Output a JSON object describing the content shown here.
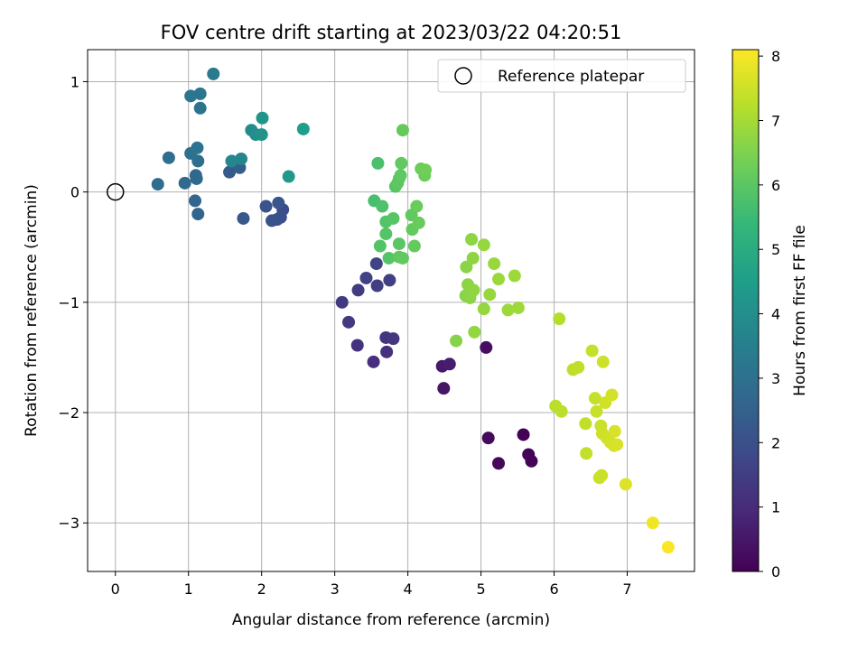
{
  "chart_data": {
    "type": "scatter",
    "title": "FOV centre drift starting at 2023/03/22 04:20:51",
    "xlabel": "Angular distance from reference (arcmin)",
    "ylabel": "Rotation from reference (arcmin)",
    "xlim": [
      -0.38,
      7.92
    ],
    "ylim": [
      -3.44,
      1.29
    ],
    "xticks": [
      "0",
      "1",
      "2",
      "3",
      "4",
      "5",
      "6",
      "7"
    ],
    "yticks": [
      "1",
      "0",
      "−1",
      "−2",
      "−3"
    ],
    "grid": true,
    "legend": {
      "placement": "top-right",
      "entries": [
        {
          "label": "Reference platepar",
          "marker": "open-circle"
        }
      ]
    },
    "reference_point": {
      "x": 0,
      "y": 0
    },
    "colorbar": {
      "label": "Hours from first FF file",
      "range": [
        0,
        8.1
      ],
      "ticks": [
        "0",
        "1",
        "2",
        "3",
        "4",
        "5",
        "6",
        "7",
        "8"
      ],
      "colormap": "viridis",
      "stops": [
        "#440154",
        "#482878",
        "#3e4989",
        "#31688e",
        "#26828e",
        "#1f9e89",
        "#35b779",
        "#6ece58",
        "#b5de2b",
        "#fde725"
      ]
    },
    "points": [
      {
        "x": 5.58,
        "y": -2.2,
        "c": 0.05
      },
      {
        "x": 5.65,
        "y": -2.38,
        "c": 0.08
      },
      {
        "x": 5.69,
        "y": -2.44,
        "c": 0.1
      },
      {
        "x": 5.24,
        "y": -2.46,
        "c": 0.15
      },
      {
        "x": 5.1,
        "y": -2.23,
        "c": 0.2
      },
      {
        "x": 5.07,
        "y": -1.41,
        "c": 0.3
      },
      {
        "x": 4.49,
        "y": -1.78,
        "c": 0.45
      },
      {
        "x": 4.47,
        "y": -1.58,
        "c": 0.55
      },
      {
        "x": 4.57,
        "y": -1.56,
        "c": 0.65
      },
      {
        "x": 3.53,
        "y": -1.54,
        "c": 1.1
      },
      {
        "x": 3.71,
        "y": -1.45,
        "c": 1.15
      },
      {
        "x": 3.31,
        "y": -1.39,
        "c": 1.2
      },
      {
        "x": 3.7,
        "y": -1.32,
        "c": 1.25
      },
      {
        "x": 3.8,
        "y": -1.33,
        "c": 1.3
      },
      {
        "x": 3.19,
        "y": -1.18,
        "c": 1.35
      },
      {
        "x": 3.1,
        "y": -1.0,
        "c": 1.4
      },
      {
        "x": 3.32,
        "y": -0.89,
        "c": 1.45
      },
      {
        "x": 3.58,
        "y": -0.85,
        "c": 1.5
      },
      {
        "x": 3.75,
        "y": -0.8,
        "c": 1.55
      },
      {
        "x": 3.43,
        "y": -0.78,
        "c": 1.6
      },
      {
        "x": 3.57,
        "y": -0.65,
        "c": 1.65
      },
      {
        "x": 2.29,
        "y": -0.16,
        "c": 1.9
      },
      {
        "x": 2.26,
        "y": -0.23,
        "c": 1.95
      },
      {
        "x": 2.21,
        "y": -0.25,
        "c": 2.0
      },
      {
        "x": 2.14,
        "y": -0.26,
        "c": 2.05
      },
      {
        "x": 2.06,
        "y": -0.13,
        "c": 2.1
      },
      {
        "x": 2.23,
        "y": -0.1,
        "c": 2.15
      },
      {
        "x": 1.75,
        "y": -0.24,
        "c": 2.2
      },
      {
        "x": 1.56,
        "y": 0.18,
        "c": 2.3
      },
      {
        "x": 1.7,
        "y": 0.22,
        "c": 2.4
      },
      {
        "x": 1.13,
        "y": -0.2,
        "c": 2.6
      },
      {
        "x": 1.09,
        "y": -0.08,
        "c": 2.65
      },
      {
        "x": 1.11,
        "y": 0.12,
        "c": 2.7
      },
      {
        "x": 1.1,
        "y": 0.15,
        "c": 2.75
      },
      {
        "x": 0.95,
        "y": 0.08,
        "c": 2.8
      },
      {
        "x": 0.58,
        "y": 0.07,
        "c": 2.85
      },
      {
        "x": 0.73,
        "y": 0.31,
        "c": 2.9
      },
      {
        "x": 1.13,
        "y": 0.28,
        "c": 2.95
      },
      {
        "x": 1.03,
        "y": 0.35,
        "c": 3.0
      },
      {
        "x": 1.12,
        "y": 0.4,
        "c": 3.05
      },
      {
        "x": 1.16,
        "y": 0.76,
        "c": 3.1
      },
      {
        "x": 1.03,
        "y": 0.87,
        "c": 3.15
      },
      {
        "x": 1.16,
        "y": 0.89,
        "c": 3.2
      },
      {
        "x": 1.34,
        "y": 1.07,
        "c": 3.3
      },
      {
        "x": 1.72,
        "y": 0.3,
        "c": 3.7
      },
      {
        "x": 1.59,
        "y": 0.28,
        "c": 3.75
      },
      {
        "x": 1.86,
        "y": 0.56,
        "c": 3.9
      },
      {
        "x": 1.92,
        "y": 0.52,
        "c": 4.0
      },
      {
        "x": 2.0,
        "y": 0.52,
        "c": 4.1
      },
      {
        "x": 2.01,
        "y": 0.67,
        "c": 4.2
      },
      {
        "x": 2.37,
        "y": 0.14,
        "c": 4.3
      },
      {
        "x": 2.57,
        "y": 0.57,
        "c": 4.5
      },
      {
        "x": 3.54,
        "y": -0.08,
        "c": 5.7
      },
      {
        "x": 3.59,
        "y": 0.26,
        "c": 5.75
      },
      {
        "x": 3.65,
        "y": -0.13,
        "c": 5.8
      },
      {
        "x": 3.62,
        "y": -0.49,
        "c": 5.85
      },
      {
        "x": 3.7,
        "y": -0.27,
        "c": 5.85
      },
      {
        "x": 3.7,
        "y": -0.38,
        "c": 5.9
      },
      {
        "x": 3.74,
        "y": -0.6,
        "c": 5.9
      },
      {
        "x": 3.8,
        "y": -0.24,
        "c": 5.95
      },
      {
        "x": 3.83,
        "y": 0.05,
        "c": 5.95
      },
      {
        "x": 3.86,
        "y": 0.08,
        "c": 6.0
      },
      {
        "x": 3.88,
        "y": 0.12,
        "c": 6.0
      },
      {
        "x": 3.9,
        "y": 0.15,
        "c": 6.05
      },
      {
        "x": 3.88,
        "y": -0.47,
        "c": 6.0
      },
      {
        "x": 3.88,
        "y": -0.59,
        "c": 6.05
      },
      {
        "x": 3.93,
        "y": -0.6,
        "c": 6.1
      },
      {
        "x": 3.91,
        "y": 0.26,
        "c": 6.1
      },
      {
        "x": 3.93,
        "y": 0.56,
        "c": 6.15
      },
      {
        "x": 4.05,
        "y": -0.21,
        "c": 6.1
      },
      {
        "x": 4.06,
        "y": -0.34,
        "c": 6.15
      },
      {
        "x": 4.09,
        "y": -0.49,
        "c": 6.15
      },
      {
        "x": 4.12,
        "y": -0.13,
        "c": 6.2
      },
      {
        "x": 4.15,
        "y": -0.28,
        "c": 6.2
      },
      {
        "x": 4.18,
        "y": 0.21,
        "c": 6.25
      },
      {
        "x": 4.23,
        "y": 0.15,
        "c": 6.25
      },
      {
        "x": 4.24,
        "y": 0.2,
        "c": 6.3
      },
      {
        "x": 4.66,
        "y": -1.35,
        "c": 6.6
      },
      {
        "x": 4.79,
        "y": -0.94,
        "c": 6.62
      },
      {
        "x": 4.8,
        "y": -0.68,
        "c": 6.64
      },
      {
        "x": 4.82,
        "y": -0.84,
        "c": 6.66
      },
      {
        "x": 4.85,
        "y": -0.96,
        "c": 6.68
      },
      {
        "x": 4.87,
        "y": -0.43,
        "c": 6.7
      },
      {
        "x": 4.89,
        "y": -0.6,
        "c": 6.72
      },
      {
        "x": 4.9,
        "y": -0.89,
        "c": 6.74
      },
      {
        "x": 4.91,
        "y": -1.27,
        "c": 6.76
      },
      {
        "x": 5.04,
        "y": -0.48,
        "c": 6.78
      },
      {
        "x": 5.04,
        "y": -1.06,
        "c": 6.8
      },
      {
        "x": 5.12,
        "y": -0.93,
        "c": 6.82
      },
      {
        "x": 5.18,
        "y": -0.65,
        "c": 6.84
      },
      {
        "x": 5.24,
        "y": -0.79,
        "c": 6.86
      },
      {
        "x": 5.37,
        "y": -1.07,
        "c": 6.88
      },
      {
        "x": 5.46,
        "y": -0.76,
        "c": 6.9
      },
      {
        "x": 5.51,
        "y": -1.05,
        "c": 6.92
      },
      {
        "x": 6.07,
        "y": -1.15,
        "c": 7.2
      },
      {
        "x": 6.02,
        "y": -1.94,
        "c": 7.25
      },
      {
        "x": 6.1,
        "y": -1.99,
        "c": 7.28
      },
      {
        "x": 6.26,
        "y": -1.61,
        "c": 7.3
      },
      {
        "x": 6.33,
        "y": -1.59,
        "c": 7.32
      },
      {
        "x": 6.43,
        "y": -2.1,
        "c": 7.34
      },
      {
        "x": 6.44,
        "y": -2.37,
        "c": 7.36
      },
      {
        "x": 6.52,
        "y": -1.44,
        "c": 7.38
      },
      {
        "x": 6.56,
        "y": -1.87,
        "c": 7.4
      },
      {
        "x": 6.58,
        "y": -1.99,
        "c": 7.42
      },
      {
        "x": 6.62,
        "y": -2.59,
        "c": 7.44
      },
      {
        "x": 6.64,
        "y": -2.12,
        "c": 7.46
      },
      {
        "x": 6.65,
        "y": -2.57,
        "c": 7.48
      },
      {
        "x": 6.66,
        "y": -2.19,
        "c": 7.5
      },
      {
        "x": 6.67,
        "y": -1.54,
        "c": 7.5
      },
      {
        "x": 6.7,
        "y": -1.91,
        "c": 7.52
      },
      {
        "x": 6.72,
        "y": -2.23,
        "c": 7.54
      },
      {
        "x": 6.77,
        "y": -2.27,
        "c": 7.56
      },
      {
        "x": 6.79,
        "y": -1.84,
        "c": 7.58
      },
      {
        "x": 6.82,
        "y": -2.3,
        "c": 7.6
      },
      {
        "x": 6.83,
        "y": -2.17,
        "c": 7.62
      },
      {
        "x": 6.86,
        "y": -2.29,
        "c": 7.64
      },
      {
        "x": 6.98,
        "y": -2.65,
        "c": 7.7
      },
      {
        "x": 7.35,
        "y": -3.0,
        "c": 7.95
      },
      {
        "x": 7.56,
        "y": -3.22,
        "c": 8.05
      }
    ]
  }
}
